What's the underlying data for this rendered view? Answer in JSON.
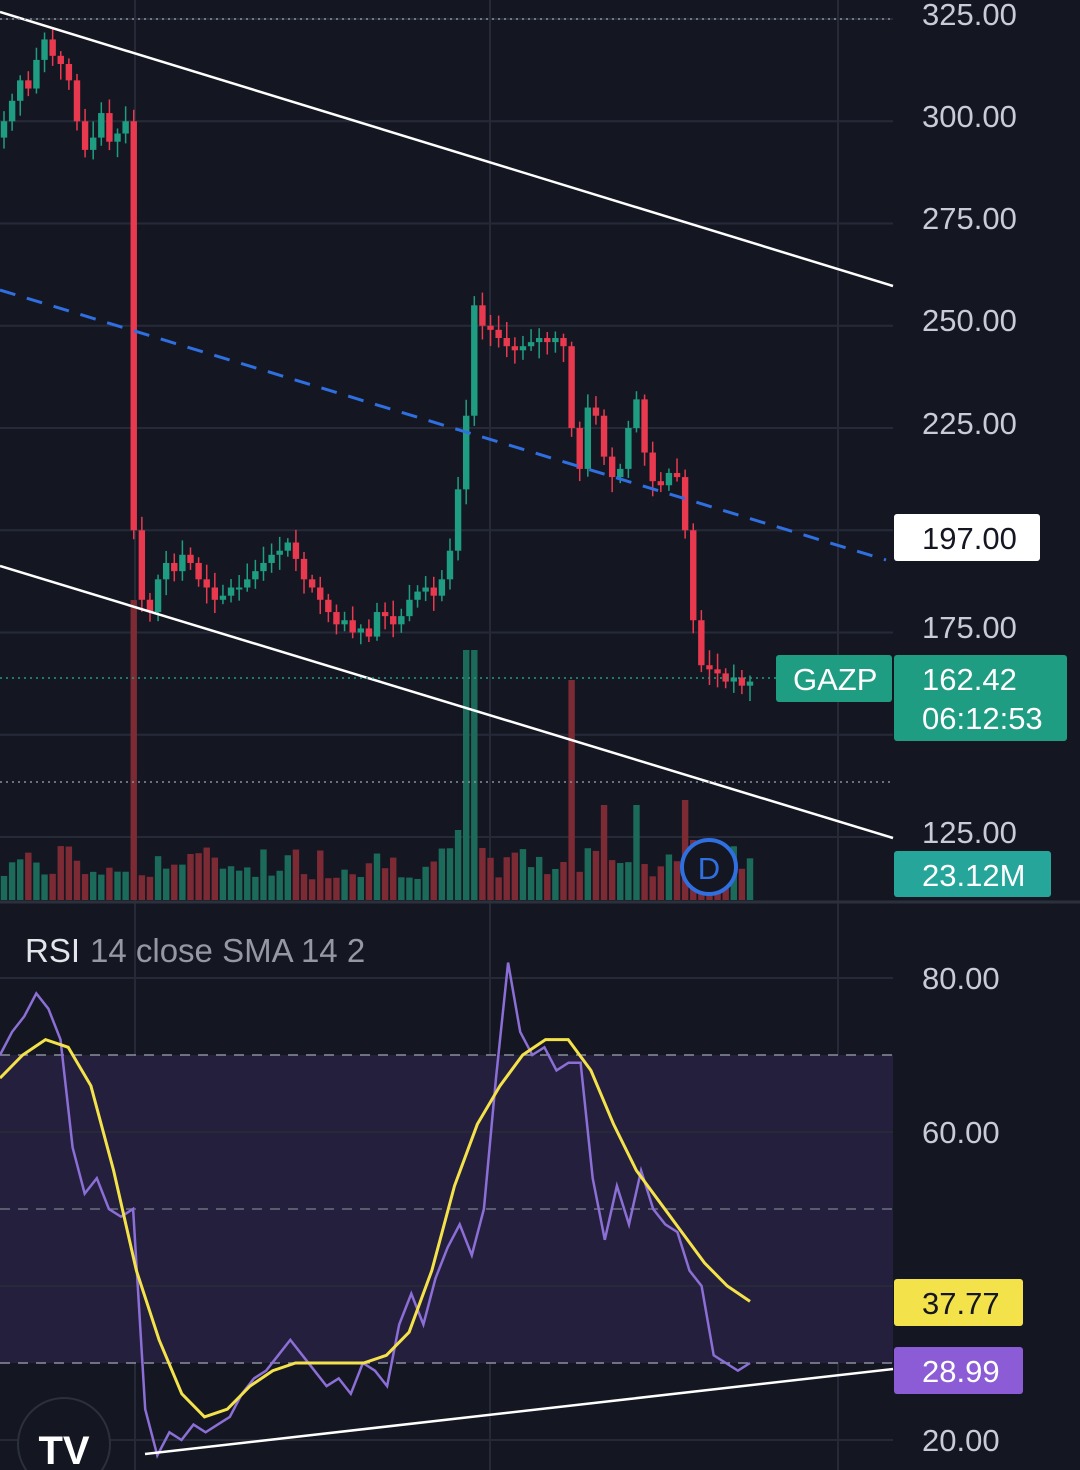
{
  "colors": {
    "background": "#141722",
    "grid": "#262a38",
    "up": "#1f9d82",
    "down": "#e8394f",
    "vol_up": "#1c6a5a",
    "vol_down": "#7c2a33",
    "channel": "#ffffff",
    "midline": "#2f6fe0",
    "rsi": "#8b6fd6",
    "rsi_sma": "#f4e24a",
    "rsi_band": "#241f3d",
    "axis_text": "#c9ccd6"
  },
  "price_axis": {
    "ticks": [
      "325.00",
      "300.00",
      "275.00",
      "250.00",
      "225.00",
      "175.00",
      "125.00"
    ]
  },
  "price_tags": {
    "line_level": "197.00",
    "symbol": "GAZP",
    "last_price": "162.42",
    "countdown": "06:12:53",
    "volume": "23.12M"
  },
  "dividend_marker": "D",
  "rsi_panel": {
    "title": "RSI",
    "params": "14 close SMA 14 2",
    "ticks": [
      "80.00",
      "60.00",
      "20.00"
    ],
    "sma_value": "37.77",
    "rsi_value": "28.99"
  },
  "logo": "TV",
  "chart_data": [
    {
      "type": "candlestick",
      "symbol": "GAZP",
      "ylim": [
        119,
        327
      ],
      "close": [
        300,
        305,
        310,
        308,
        315,
        320,
        316,
        314,
        310,
        300,
        293,
        296,
        302,
        295,
        297,
        300,
        200,
        183,
        180,
        188,
        192,
        190,
        194,
        192,
        188,
        186,
        183,
        184,
        186,
        186,
        188,
        190,
        192,
        194,
        195,
        197,
        193,
        188,
        186,
        183,
        180,
        177,
        178,
        175,
        176,
        174,
        180,
        179,
        177,
        179,
        183,
        185,
        186,
        184,
        188,
        195,
        210,
        228,
        255,
        250,
        249,
        247,
        245,
        244,
        245,
        246,
        247,
        246,
        247,
        245,
        225,
        215,
        230,
        228,
        218,
        213,
        215,
        225,
        232,
        219,
        212,
        211,
        214,
        213,
        200,
        178,
        167,
        166,
        165,
        163,
        164,
        162,
        163
      ],
      "volume_label": "23.12M",
      "last": 162.42,
      "channel_level_label": 197.0
    },
    {
      "type": "line",
      "title": "RSI 14 close SMA 14 2",
      "ylim": [
        16,
        84
      ],
      "series": [
        {
          "name": "RSI",
          "values": [
            70,
            73,
            75,
            78,
            76,
            72,
            58,
            52,
            54,
            50,
            49,
            50,
            24,
            18,
            21,
            20,
            22,
            21,
            22,
            23,
            26,
            28,
            29,
            31,
            33,
            31,
            29,
            27,
            28,
            26,
            30,
            29,
            27,
            35,
            39,
            35,
            41,
            45,
            48,
            44,
            50,
            67,
            82,
            73,
            70,
            71,
            68,
            69,
            69,
            54,
            46,
            53,
            48,
            55,
            50,
            48,
            47,
            42,
            40,
            31,
            30,
            29,
            30
          ]
        },
        {
          "name": "SMA",
          "values": [
            67,
            70,
            72,
            71,
            66,
            55,
            42,
            33,
            26,
            23,
            24,
            27,
            29,
            30,
            30,
            30,
            30,
            31,
            34,
            42,
            53,
            61,
            66,
            70,
            72,
            72,
            68,
            61,
            55,
            51,
            47,
            43,
            40,
            38
          ]
        }
      ],
      "levels": [
        70,
        50,
        30
      ],
      "last_rsi": 28.99,
      "last_sma": 37.77
    }
  ]
}
